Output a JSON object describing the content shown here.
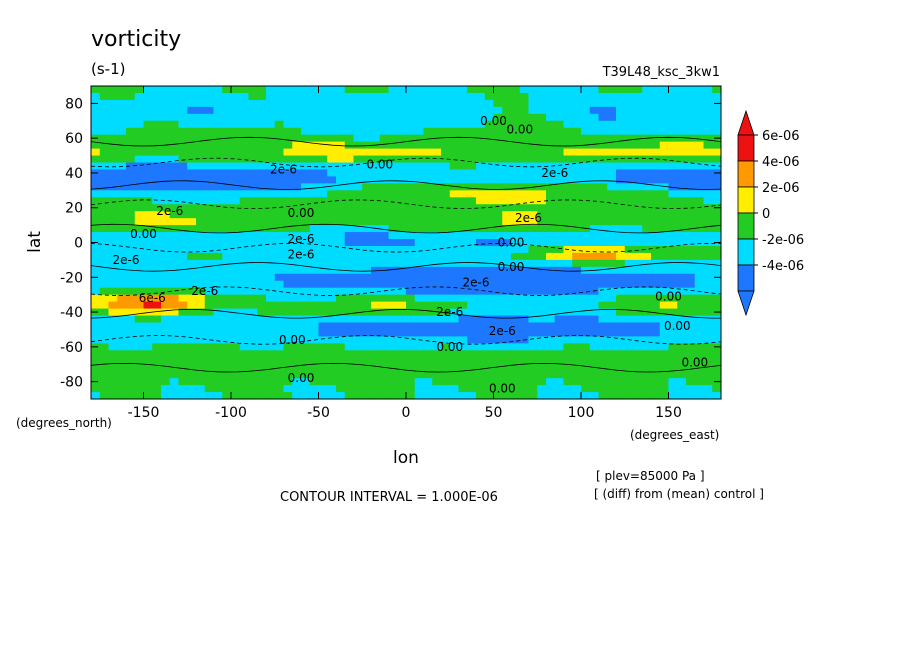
{
  "chart_data": {
    "type": "heatmap",
    "title": "vorticity",
    "units": "(s-1)",
    "experiment": "T39L48_ksc_3kw1",
    "xlabel": "lon",
    "ylabel": "lat",
    "x_units": "(degrees_east)",
    "y_units": "(degrees_north)",
    "xlim": [
      -180,
      180
    ],
    "ylim": [
      -90,
      90
    ],
    "x_ticks": [
      -150,
      -100,
      -50,
      0,
      50,
      100,
      150
    ],
    "x_tick_labels": [
      "-150",
      "-100",
      "-50",
      "0",
      "50",
      "100",
      "150"
    ],
    "y_ticks": [
      80,
      60,
      40,
      20,
      0,
      -20,
      -40,
      -60,
      -80
    ],
    "y_tick_labels": [
      "80",
      "60",
      "40",
      "20",
      "0",
      "-20",
      "-40",
      "-60",
      "-80"
    ],
    "colorbar": {
      "levels": [
        -4e-06,
        -2e-06,
        0,
        2e-06,
        4e-06,
        6e-06
      ],
      "labels": [
        "6e-06",
        "4e-06",
        "2e-06",
        "0",
        "-2e-06",
        "-4e-06"
      ],
      "colors": [
        "#1e78ff",
        "#00dcff",
        "#22cc22",
        "#ffee00",
        "#ff9900",
        "#ee1111"
      ]
    },
    "contour_interval_text": "CONTOUR INTERVAL = 1.000E-06",
    "notes": [
      "[ plev=85000 Pa ]",
      "[ (diff) from (mean) control ]"
    ],
    "contour_labels": [
      {
        "text": "0.00",
        "lon": 50,
        "lat": 70
      },
      {
        "text": "0.00",
        "lon": 65,
        "lat": 65
      },
      {
        "text": "0.00",
        "lon": -15,
        "lat": 45
      },
      {
        "text": "2e-6",
        "lon": -70,
        "lat": 42
      },
      {
        "text": "2e-6",
        "lon": 85,
        "lat": 40
      },
      {
        "text": "2e-6",
        "lon": -135,
        "lat": 18
      },
      {
        "text": "0.00",
        "lon": -60,
        "lat": 17
      },
      {
        "text": "2e-6",
        "lon": 70,
        "lat": 14
      },
      {
        "text": "0.00",
        "lon": -150,
        "lat": 5
      },
      {
        "text": "2e-6",
        "lon": -60,
        "lat": 2
      },
      {
        "text": "0.00",
        "lon": 60,
        "lat": 0
      },
      {
        "text": "2e-6",
        "lon": -60,
        "lat": -7
      },
      {
        "text": "2e-6",
        "lon": -160,
        "lat": -10
      },
      {
        "text": "0.00",
        "lon": 60,
        "lat": -14
      },
      {
        "text": "2e-6",
        "lon": 40,
        "lat": -23
      },
      {
        "text": "6e-6",
        "lon": -145,
        "lat": -32
      },
      {
        "text": "2e-6",
        "lon": -115,
        "lat": -28
      },
      {
        "text": "2e-6",
        "lon": 25,
        "lat": -40
      },
      {
        "text": "0.00",
        "lon": 150,
        "lat": -31
      },
      {
        "text": "2e-6",
        "lon": 55,
        "lat": -51
      },
      {
        "text": "0.00",
        "lon": -65,
        "lat": -56
      },
      {
        "text": "0.00",
        "lon": 25,
        "lat": -60
      },
      {
        "text": "0.00",
        "lon": 155,
        "lat": -48
      },
      {
        "text": "0.00",
        "lon": 165,
        "lat": -69
      },
      {
        "text": "0.00",
        "lon": -60,
        "lat": -78
      },
      {
        "text": "0.00",
        "lon": 55,
        "lat": -84
      }
    ],
    "legend_position": "right"
  }
}
